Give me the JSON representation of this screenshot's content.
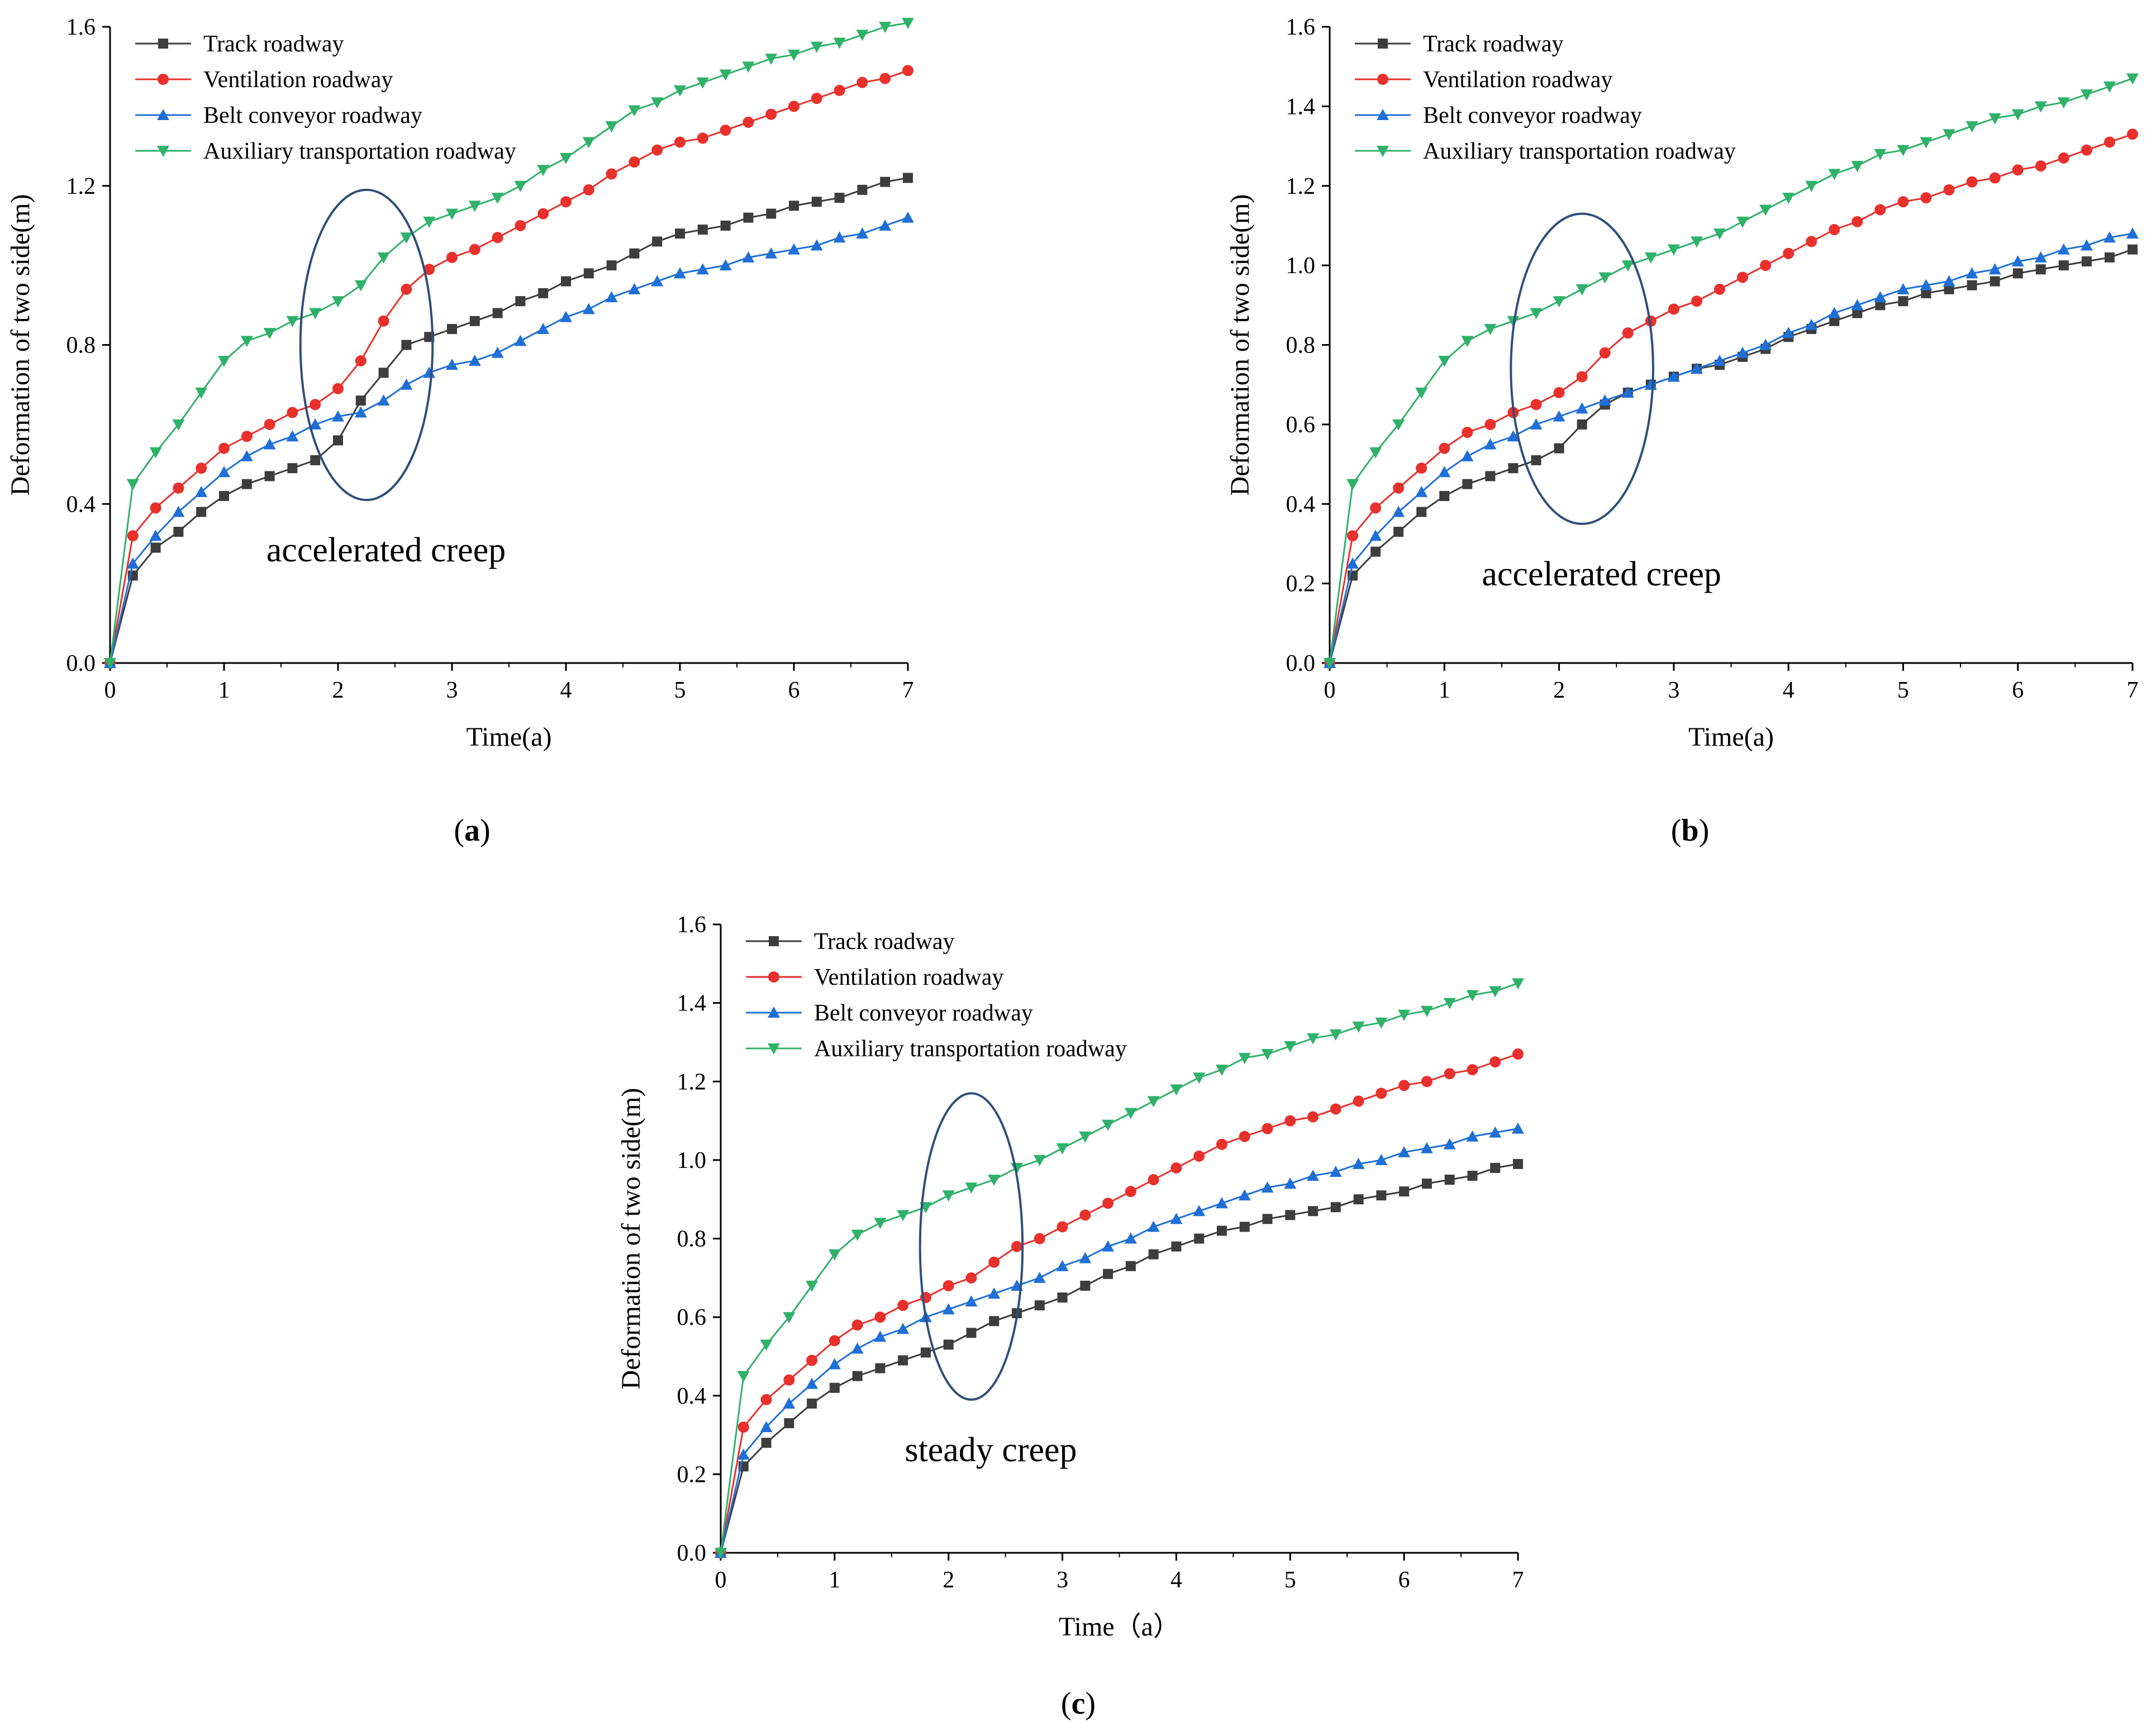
{
  "chart_data": [
    {
      "type": "line",
      "panel": "a",
      "caption_letter": "a",
      "xlabel": "Time(a)",
      "ylabel": "Deformation of two side(m)",
      "xlim": [
        0,
        7
      ],
      "ylim": [
        0,
        1.6
      ],
      "xticks": [
        0,
        1,
        2,
        3,
        4,
        5,
        6,
        7
      ],
      "yticks": [
        0.0,
        0.4,
        0.8,
        1.2,
        1.6
      ],
      "ytick_decimals": 1,
      "annotation": "accelerated creep",
      "annotation_ellipse": {
        "cx": 2.25,
        "cy": 0.8,
        "rx": 0.58,
        "ry": 0.39
      },
      "legend_position": "top-left",
      "x": [
        0,
        0.2,
        0.4,
        0.6,
        0.8,
        1.0,
        1.2,
        1.4,
        1.6,
        1.8,
        2.0,
        2.2,
        2.4,
        2.6,
        2.8,
        3.0,
        3.2,
        3.4,
        3.6,
        3.8,
        4.0,
        4.2,
        4.4,
        4.6,
        4.8,
        5.0,
        5.2,
        5.4,
        5.6,
        5.8,
        6.0,
        6.2,
        6.4,
        6.6,
        6.8,
        7.0
      ],
      "series": [
        {
          "name": "Track roadway",
          "color": "#3d3d3d",
          "marker": "square",
          "values": [
            0,
            0.22,
            0.29,
            0.33,
            0.38,
            0.42,
            0.45,
            0.47,
            0.49,
            0.51,
            0.56,
            0.66,
            0.73,
            0.8,
            0.82,
            0.84,
            0.86,
            0.88,
            0.91,
            0.93,
            0.96,
            0.98,
            1.0,
            1.03,
            1.06,
            1.08,
            1.09,
            1.1,
            1.12,
            1.13,
            1.15,
            1.16,
            1.17,
            1.19,
            1.21,
            1.22
          ]
        },
        {
          "name": "Ventilation roadway",
          "color": "#e8302c",
          "marker": "circle",
          "values": [
            0,
            0.32,
            0.39,
            0.44,
            0.49,
            0.54,
            0.57,
            0.6,
            0.63,
            0.65,
            0.69,
            0.76,
            0.86,
            0.94,
            0.99,
            1.02,
            1.04,
            1.07,
            1.1,
            1.13,
            1.16,
            1.19,
            1.23,
            1.26,
            1.29,
            1.31,
            1.32,
            1.34,
            1.36,
            1.38,
            1.4,
            1.42,
            1.44,
            1.46,
            1.47,
            1.49
          ]
        },
        {
          "name": "Belt conveyor roadway",
          "color": "#1f6fd6",
          "marker": "triangle-up",
          "values": [
            0,
            0.25,
            0.32,
            0.38,
            0.43,
            0.48,
            0.52,
            0.55,
            0.57,
            0.6,
            0.62,
            0.63,
            0.66,
            0.7,
            0.73,
            0.75,
            0.76,
            0.78,
            0.81,
            0.84,
            0.87,
            0.89,
            0.92,
            0.94,
            0.96,
            0.98,
            0.99,
            1.0,
            1.02,
            1.03,
            1.04,
            1.05,
            1.07,
            1.08,
            1.1,
            1.12
          ]
        },
        {
          "name": "Auxiliary transportation roadway",
          "color": "#2fb16a",
          "marker": "triangle-down",
          "values": [
            0,
            0.45,
            0.53,
            0.6,
            0.68,
            0.76,
            0.81,
            0.83,
            0.86,
            0.88,
            0.91,
            0.95,
            1.02,
            1.07,
            1.11,
            1.13,
            1.15,
            1.17,
            1.2,
            1.24,
            1.27,
            1.31,
            1.35,
            1.39,
            1.41,
            1.44,
            1.46,
            1.48,
            1.5,
            1.52,
            1.53,
            1.55,
            1.56,
            1.58,
            1.6,
            1.61
          ]
        }
      ]
    },
    {
      "type": "line",
      "panel": "b",
      "caption_letter": "b",
      "xlabel": "Time(a)",
      "ylabel": "Deformation of two side(m)",
      "xlim": [
        0,
        7
      ],
      "ylim": [
        0,
        1.6
      ],
      "xticks": [
        0,
        1,
        2,
        3,
        4,
        5,
        6,
        7
      ],
      "yticks": [
        0.0,
        0.2,
        0.4,
        0.6,
        0.8,
        1.0,
        1.2,
        1.4,
        1.6
      ],
      "ytick_decimals": 1,
      "annotation": "accelerated creep",
      "annotation_ellipse": {
        "cx": 2.2,
        "cy": 0.74,
        "rx": 0.62,
        "ry": 0.39
      },
      "legend_position": "top-left",
      "x": [
        0,
        0.2,
        0.4,
        0.6,
        0.8,
        1.0,
        1.2,
        1.4,
        1.6,
        1.8,
        2.0,
        2.2,
        2.4,
        2.6,
        2.8,
        3.0,
        3.2,
        3.4,
        3.6,
        3.8,
        4.0,
        4.2,
        4.4,
        4.6,
        4.8,
        5.0,
        5.2,
        5.4,
        5.6,
        5.8,
        6.0,
        6.2,
        6.4,
        6.6,
        6.8,
        7.0
      ],
      "series": [
        {
          "name": "Track roadway",
          "color": "#3d3d3d",
          "marker": "square",
          "values": [
            0,
            0.22,
            0.28,
            0.33,
            0.38,
            0.42,
            0.45,
            0.47,
            0.49,
            0.51,
            0.54,
            0.6,
            0.65,
            0.68,
            0.7,
            0.72,
            0.74,
            0.75,
            0.77,
            0.79,
            0.82,
            0.84,
            0.86,
            0.88,
            0.9,
            0.91,
            0.93,
            0.94,
            0.95,
            0.96,
            0.98,
            0.99,
            1.0,
            1.01,
            1.02,
            1.04
          ]
        },
        {
          "name": "Ventilation roadway",
          "color": "#e8302c",
          "marker": "circle",
          "values": [
            0,
            0.32,
            0.39,
            0.44,
            0.49,
            0.54,
            0.58,
            0.6,
            0.63,
            0.65,
            0.68,
            0.72,
            0.78,
            0.83,
            0.86,
            0.89,
            0.91,
            0.94,
            0.97,
            1.0,
            1.03,
            1.06,
            1.09,
            1.11,
            1.14,
            1.16,
            1.17,
            1.19,
            1.21,
            1.22,
            1.24,
            1.25,
            1.27,
            1.29,
            1.31,
            1.33
          ]
        },
        {
          "name": "Belt conveyor roadway",
          "color": "#1f6fd6",
          "marker": "triangle-up",
          "values": [
            0,
            0.25,
            0.32,
            0.38,
            0.43,
            0.48,
            0.52,
            0.55,
            0.57,
            0.6,
            0.62,
            0.64,
            0.66,
            0.68,
            0.7,
            0.72,
            0.74,
            0.76,
            0.78,
            0.8,
            0.83,
            0.85,
            0.88,
            0.9,
            0.92,
            0.94,
            0.95,
            0.96,
            0.98,
            0.99,
            1.01,
            1.02,
            1.04,
            1.05,
            1.07,
            1.08
          ]
        },
        {
          "name": "Auxiliary transportation roadway",
          "color": "#2fb16a",
          "marker": "triangle-down",
          "values": [
            0,
            0.45,
            0.53,
            0.6,
            0.68,
            0.76,
            0.81,
            0.84,
            0.86,
            0.88,
            0.91,
            0.94,
            0.97,
            1.0,
            1.02,
            1.04,
            1.06,
            1.08,
            1.11,
            1.14,
            1.17,
            1.2,
            1.23,
            1.25,
            1.28,
            1.29,
            1.31,
            1.33,
            1.35,
            1.37,
            1.38,
            1.4,
            1.41,
            1.43,
            1.45,
            1.47
          ]
        }
      ]
    },
    {
      "type": "line",
      "panel": "c",
      "caption_letter": "c",
      "xlabel": "Time（a）",
      "ylabel": "Deformation of two side(m)",
      "xlim": [
        0,
        7
      ],
      "ylim": [
        0,
        1.6
      ],
      "xticks": [
        0,
        1,
        2,
        3,
        4,
        5,
        6,
        7
      ],
      "yticks": [
        0.0,
        0.2,
        0.4,
        0.6,
        0.8,
        1.0,
        1.2,
        1.4,
        1.6
      ],
      "ytick_decimals": 1,
      "annotation": "steady creep",
      "annotation_ellipse": {
        "cx": 2.2,
        "cy": 0.78,
        "rx": 0.45,
        "ry": 0.39
      },
      "legend_position": "top-left",
      "x": [
        0,
        0.2,
        0.4,
        0.6,
        0.8,
        1.0,
        1.2,
        1.4,
        1.6,
        1.8,
        2.0,
        2.2,
        2.4,
        2.6,
        2.8,
        3.0,
        3.2,
        3.4,
        3.6,
        3.8,
        4.0,
        4.2,
        4.4,
        4.6,
        4.8,
        5.0,
        5.2,
        5.4,
        5.6,
        5.8,
        6.0,
        6.2,
        6.4,
        6.6,
        6.8,
        7.0
      ],
      "series": [
        {
          "name": "Track roadway",
          "color": "#3d3d3d",
          "marker": "square",
          "values": [
            0,
            0.22,
            0.28,
            0.33,
            0.38,
            0.42,
            0.45,
            0.47,
            0.49,
            0.51,
            0.53,
            0.56,
            0.59,
            0.61,
            0.63,
            0.65,
            0.68,
            0.71,
            0.73,
            0.76,
            0.78,
            0.8,
            0.82,
            0.83,
            0.85,
            0.86,
            0.87,
            0.88,
            0.9,
            0.91,
            0.92,
            0.94,
            0.95,
            0.96,
            0.98,
            0.99
          ]
        },
        {
          "name": "Ventilation roadway",
          "color": "#e8302c",
          "marker": "circle",
          "values": [
            0,
            0.32,
            0.39,
            0.44,
            0.49,
            0.54,
            0.58,
            0.6,
            0.63,
            0.65,
            0.68,
            0.7,
            0.74,
            0.78,
            0.8,
            0.83,
            0.86,
            0.89,
            0.92,
            0.95,
            0.98,
            1.01,
            1.04,
            1.06,
            1.08,
            1.1,
            1.11,
            1.13,
            1.15,
            1.17,
            1.19,
            1.2,
            1.22,
            1.23,
            1.25,
            1.27
          ]
        },
        {
          "name": "Belt conveyor roadway",
          "color": "#1f6fd6",
          "marker": "triangle-up",
          "values": [
            0,
            0.25,
            0.32,
            0.38,
            0.43,
            0.48,
            0.52,
            0.55,
            0.57,
            0.6,
            0.62,
            0.64,
            0.66,
            0.68,
            0.7,
            0.73,
            0.75,
            0.78,
            0.8,
            0.83,
            0.85,
            0.87,
            0.89,
            0.91,
            0.93,
            0.94,
            0.96,
            0.97,
            0.99,
            1.0,
            1.02,
            1.03,
            1.04,
            1.06,
            1.07,
            1.08
          ]
        },
        {
          "name": "Auxiliary transportation roadway",
          "color": "#2fb16a",
          "marker": "triangle-down",
          "values": [
            0,
            0.45,
            0.53,
            0.6,
            0.68,
            0.76,
            0.81,
            0.84,
            0.86,
            0.88,
            0.91,
            0.93,
            0.95,
            0.98,
            1.0,
            1.03,
            1.06,
            1.09,
            1.12,
            1.15,
            1.18,
            1.21,
            1.23,
            1.26,
            1.27,
            1.29,
            1.31,
            1.32,
            1.34,
            1.35,
            1.37,
            1.38,
            1.4,
            1.42,
            1.43,
            1.45
          ]
        }
      ]
    }
  ]
}
